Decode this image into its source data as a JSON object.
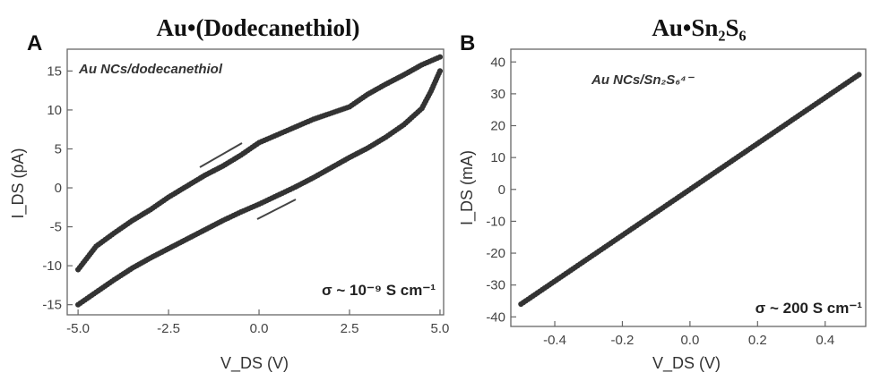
{
  "chart_data": [
    {
      "panel": "A",
      "type": "scatter",
      "title": "Au•(Dodecanethiol)",
      "xlabel": "V_DS (V)",
      "ylabel": "I_DS (pA)",
      "xlim": [
        -5.3,
        5.1
      ],
      "ylim": [
        -16.3,
        17.8
      ],
      "xticks": [
        "-5.0",
        "-2.5",
        "0.0",
        "2.5",
        "5.0"
      ],
      "yticks": [
        "-15",
        "-10",
        "-5",
        "0",
        "5",
        "10",
        "15"
      ],
      "xtick_values": [
        -5,
        -2.5,
        0,
        2.5,
        5
      ],
      "ytick_values": [
        -15,
        -10,
        -5,
        0,
        5,
        10,
        15
      ],
      "annotation": "Au NCs/dodecanethiol",
      "conductivity": "σ ~ 10⁻⁹ S cm⁻¹",
      "series": [
        {
          "values_x": [
            -5,
            -4.5,
            -4,
            -3.5,
            -3,
            -2.5,
            -2,
            -1.5,
            -1,
            -0.5,
            0,
            0.5,
            1,
            1.5,
            2,
            2.5,
            3,
            3.5,
            4,
            4.5,
            5
          ],
          "values_y": [
            -10.5,
            -7.5,
            -5.8,
            -4.2,
            -2.8,
            -1.2,
            0.2,
            1.6,
            2.8,
            4.2,
            5.8,
            6.8,
            7.8,
            8.8,
            9.6,
            10.4,
            12.0,
            13.3,
            14.5,
            15.8,
            16.8
          ]
        },
        {
          "values_x": [
            5,
            4.75,
            4.5,
            4.0,
            3.5,
            3.0,
            2.5,
            2.0,
            1.5,
            1.0,
            0.5,
            0,
            -0.5,
            -1.0,
            -1.5,
            -2.0,
            -2.5,
            -3.0,
            -3.5,
            -4.0,
            -4.5,
            -5
          ],
          "values_y": [
            15.0,
            12.4,
            10.2,
            8.1,
            6.5,
            5.1,
            3.9,
            2.6,
            1.3,
            0.1,
            -1.0,
            -2.1,
            -3.1,
            -4.2,
            -5.4,
            -6.6,
            -7.8,
            -9.0,
            -10.3,
            -11.8,
            -13.4,
            -15.0
          ]
        }
      ]
    },
    {
      "panel": "B",
      "type": "scatter",
      "title": "Au•Sn₂S₆",
      "xlabel": "V_DS (V)",
      "ylabel": "I_DS (mA)",
      "xlim": [
        -0.53,
        0.52
      ],
      "ylim": [
        -43,
        44
      ],
      "xticks": [
        "-0.4",
        "-0.2",
        "0.0",
        "0.2",
        "0.4"
      ],
      "yticks": [
        "-40",
        "-30",
        "-20",
        "-10",
        "0",
        "10",
        "20",
        "30",
        "40"
      ],
      "xtick_values": [
        -0.4,
        -0.2,
        0,
        0.2,
        0.4
      ],
      "ytick_values": [
        -40,
        -30,
        -20,
        -10,
        0,
        10,
        20,
        30,
        40
      ],
      "annotation": "Au NCs/Sn₂S₆⁴⁻",
      "conductivity": "σ ~ 200 S cm⁻¹",
      "series": [
        {
          "values_x": [
            -0.5,
            0.5
          ],
          "values_y": [
            -36,
            36
          ]
        }
      ]
    }
  ],
  "colors": {
    "data": "#333333",
    "axis": "#666666"
  }
}
